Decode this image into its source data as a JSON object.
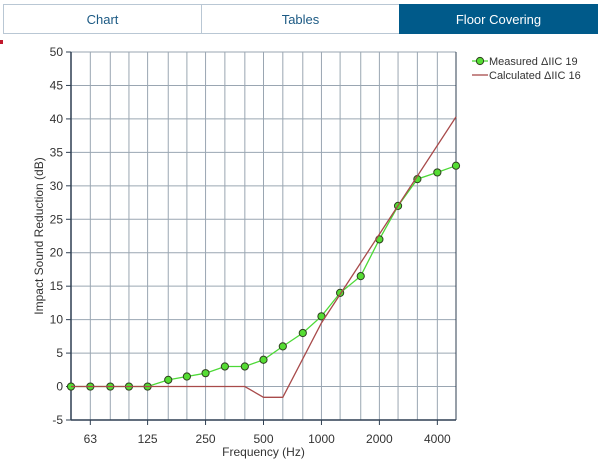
{
  "tabs": [
    {
      "label": "Chart",
      "active": false
    },
    {
      "label": "Tables",
      "active": false
    },
    {
      "label": "Floor Covering",
      "active": true
    }
  ],
  "chart_data": {
    "type": "line",
    "xlabel": "Frequency (Hz)",
    "ylabel": "Impact Sound Reduction (dB)",
    "ylim": [
      -5,
      50
    ],
    "y_ticks": [
      -5,
      0,
      5,
      10,
      15,
      20,
      25,
      30,
      35,
      40,
      45,
      50
    ],
    "x_tick_labels": [
      "63",
      "125",
      "250",
      "500",
      "1000",
      "2000",
      "4000"
    ],
    "x_scale": "log",
    "xlim": [
      50,
      5000
    ],
    "grid": true,
    "legend_position": "top-right",
    "series": [
      {
        "name": "Measured ΔIIC 19",
        "color": "#4cd936",
        "marker": "circle",
        "x": [
          50,
          63,
          80,
          100,
          125,
          160,
          200,
          250,
          315,
          400,
          500,
          630,
          800,
          1000,
          1250,
          1600,
          2000,
          2500,
          3150,
          4000,
          5000
        ],
        "values": [
          0,
          0,
          0,
          0,
          0,
          1,
          1.5,
          2,
          3,
          3,
          4,
          6,
          8,
          10.5,
          14,
          16.5,
          22,
          27,
          31,
          32,
          33
        ]
      },
      {
        "name": "Calculated ΔIIC 16",
        "color": "#a84a4a",
        "marker": "none",
        "x": [
          50,
          400,
          500,
          630,
          1000,
          5000
        ],
        "values": [
          0,
          0,
          -1.6,
          -1.6,
          9.5,
          40.3
        ]
      }
    ]
  }
}
